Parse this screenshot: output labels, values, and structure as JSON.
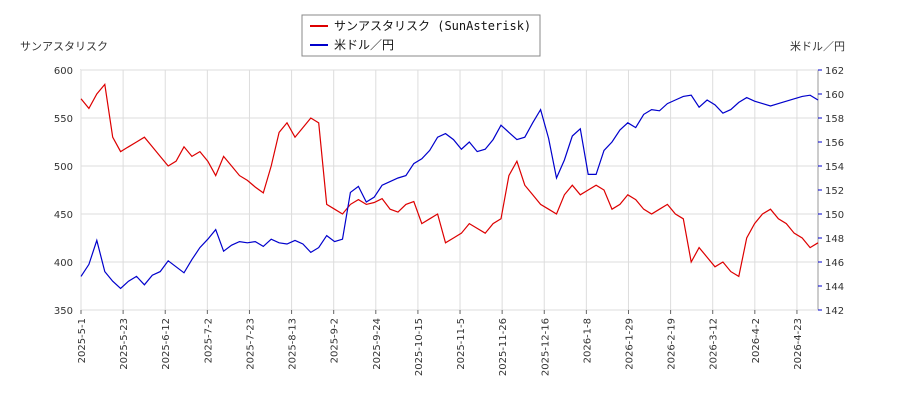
{
  "legend": {
    "items": [
      {
        "label": "サンアスタリスク (SunAsterisk)",
        "color": "#dd0000"
      },
      {
        "label": "米ドル／円",
        "color": "#0000cc"
      }
    ]
  },
  "axes": {
    "left_title": "サンアスタリスク",
    "right_title": "米ドル／円",
    "left_ticks": [
      "600",
      "550",
      "500",
      "450",
      "400",
      "350"
    ],
    "right_ticks": [
      "162",
      "160",
      "158",
      "156",
      "154",
      "152",
      "150",
      "148",
      "146",
      "144",
      "142"
    ],
    "x_ticks": [
      "2025-5-1",
      "2025-5-23",
      "2025-6-12",
      "2025-7-2",
      "2025-7-23",
      "2025-8-13",
      "2025-9-2",
      "2025-9-24",
      "2025-10-15",
      "2025-11-5",
      "2025-11-26",
      "2025-12-16",
      "2026-1-8",
      "2026-1-29",
      "2026-2-19",
      "2026-3-12",
      "2026-4-2",
      "2026-4-23"
    ]
  },
  "chart_data": {
    "type": "line",
    "x_start": "2025-5-1",
    "x_end": "2026-4-30",
    "ylim_left": [
      350,
      600
    ],
    "ylim_right": [
      142,
      162
    ],
    "grid": true,
    "legend_position": "top-center",
    "series": [
      {
        "name": "サンアスタリスク (SunAsterisk)",
        "axis": "left",
        "color": "#dd0000",
        "values": [
          570,
          560,
          575,
          585,
          530,
          515,
          520,
          525,
          530,
          520,
          510,
          500,
          505,
          520,
          510,
          515,
          505,
          490,
          510,
          500,
          490,
          485,
          478,
          472,
          500,
          535,
          545,
          530,
          540,
          550,
          545,
          460,
          455,
          450,
          460,
          465,
          460,
          462,
          466,
          455,
          452,
          460,
          463,
          440,
          445,
          450,
          420,
          425,
          430,
          440,
          435,
          430,
          440,
          445,
          490,
          505,
          480,
          470,
          460,
          455,
          450,
          470,
          480,
          470,
          475,
          480,
          475,
          455,
          460,
          470,
          465,
          455,
          450,
          455,
          460,
          450,
          445,
          400,
          415,
          405,
          395,
          400,
          390,
          385,
          425,
          440,
          450,
          455,
          445,
          440,
          430,
          425,
          415,
          420
        ]
      },
      {
        "name": "米ドル／円",
        "axis": "right",
        "color": "#0000cc",
        "values": [
          144.8,
          145.8,
          147.8,
          145.2,
          144.4,
          143.8,
          144.4,
          144.8,
          144.1,
          144.9,
          145.2,
          146.1,
          145.6,
          145.1,
          146.2,
          147.2,
          147.9,
          148.7,
          146.9,
          147.4,
          147.7,
          147.6,
          147.7,
          147.3,
          147.9,
          147.6,
          147.5,
          147.8,
          147.5,
          146.8,
          147.2,
          148.2,
          147.7,
          147.9,
          151.8,
          152.3,
          151.0,
          151.4,
          152.4,
          152.7,
          153.0,
          153.2,
          154.2,
          154.6,
          155.3,
          156.4,
          156.7,
          156.2,
          155.4,
          156.0,
          155.2,
          155.4,
          156.2,
          157.4,
          156.8,
          156.2,
          156.4,
          157.6,
          158.7,
          156.3,
          153.0,
          154.5,
          156.5,
          157.1,
          153.3,
          153.3,
          155.3,
          156.0,
          157.0,
          157.6,
          157.2,
          158.3,
          158.7,
          158.6,
          159.2,
          159.5,
          159.8,
          159.9,
          158.9,
          159.5,
          159.1,
          158.4,
          158.7,
          159.3,
          159.7,
          159.4,
          159.2,
          159.0,
          159.2,
          159.4,
          159.6,
          159.8,
          159.9,
          159.5
        ]
      }
    ]
  }
}
